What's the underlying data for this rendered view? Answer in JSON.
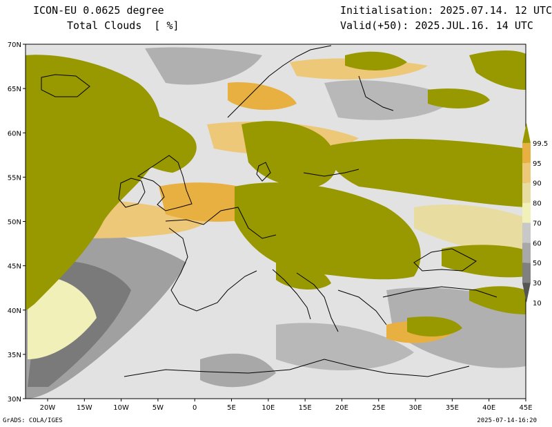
{
  "header": {
    "model": "ICON-EU 0.0625 degree",
    "field": "Total Clouds  [ %]",
    "init": "Initialisation: 2025.07.14. 12 UTC",
    "valid": "Valid(+50): 2025.JUL.16. 14 UTC"
  },
  "footer": {
    "credit": "GrADS: COLA/IGES",
    "timestamp": "2025-07-14-16:20"
  },
  "map": {
    "lon_range": [
      -23,
      45
    ],
    "lat_range": [
      30,
      70
    ],
    "lat_ticks": [
      "30N",
      "35N",
      "40N",
      "45N",
      "50N",
      "55N",
      "60N",
      "65N",
      "70N"
    ],
    "lon_ticks": [
      "20W",
      "15W",
      "10W",
      "5W",
      "0",
      "5E",
      "10E",
      "15E",
      "20E",
      "25E",
      "30E",
      "35E",
      "40E",
      "45E"
    ]
  },
  "colorbar": {
    "labels": [
      "10",
      "30",
      "50",
      "60",
      "70",
      "80",
      "90",
      "95",
      "99.5"
    ],
    "colors": [
      "#555555",
      "#808080",
      "#a8a8a8",
      "#c8c8c8",
      "#f0f0b8",
      "#e8dca0",
      "#ecc878",
      "#e8b040",
      "#989800"
    ]
  }
}
